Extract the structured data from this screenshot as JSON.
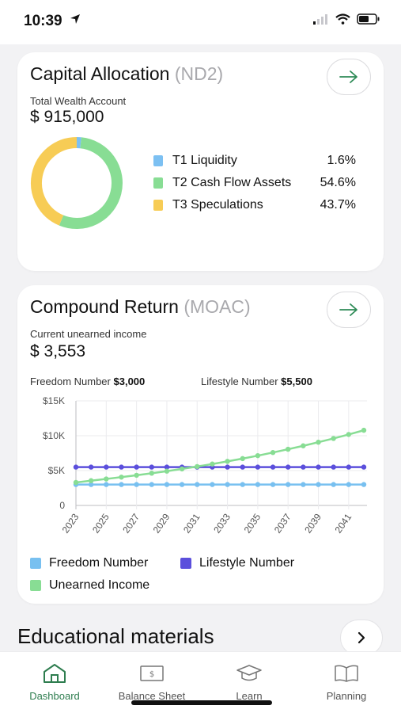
{
  "status": {
    "time": "10:39"
  },
  "capital": {
    "title": "Capital Allocation",
    "title_suffix": "(ND2)",
    "subtitle": "Total Wealth Account",
    "value": "$ 915,000",
    "legend": [
      {
        "label": "T1 Liquidity",
        "pct": "1.6%",
        "color": "#7cc0f2"
      },
      {
        "label": "T2 Cash Flow Assets",
        "pct": "54.6%",
        "color": "#88dd94"
      },
      {
        "label": "T3 Speculations",
        "pct": "43.7%",
        "color": "#f7cc55"
      }
    ]
  },
  "compound": {
    "title": "Compound Return",
    "title_suffix": "(MOAC)",
    "subtitle": "Current unearned income",
    "value": "$ 3,553",
    "freedom_label": "Freedom Number",
    "freedom_value": "$3,000",
    "lifestyle_label": "Lifestyle Number",
    "lifestyle_value": "$5,500",
    "legend": [
      {
        "label": "Freedom Number",
        "color": "#78c0f0"
      },
      {
        "label": "Lifestyle Number",
        "color": "#5b4fdc"
      },
      {
        "label": "Unearned Income",
        "color": "#88dd94"
      }
    ]
  },
  "chart_data": [
    {
      "type": "pie",
      "categories": [
        "T1 Liquidity",
        "T2 Cash Flow Assets",
        "T3 Speculations"
      ],
      "values": [
        1.6,
        54.6,
        43.7
      ],
      "colors": [
        "#7cc0f2",
        "#88dd94",
        "#f7cc55"
      ]
    },
    {
      "type": "line",
      "x": [
        2023,
        2024,
        2025,
        2026,
        2027,
        2028,
        2029,
        2030,
        2031,
        2032,
        2033,
        2034,
        2035,
        2036,
        2037,
        2038,
        2039,
        2040,
        2041,
        2042
      ],
      "xticks": [
        "2023",
        "2025",
        "2027",
        "2029",
        "2031",
        "2033",
        "2035",
        "2037",
        "2039",
        "2041"
      ],
      "yticks": [
        "0",
        "$5K",
        "$10K",
        "$15K"
      ],
      "ylim": [
        0,
        15000
      ],
      "grid": true,
      "series": [
        {
          "name": "Freedom Number",
          "color": "#78c0f0",
          "values": [
            3000,
            3000,
            3000,
            3000,
            3000,
            3000,
            3000,
            3000,
            3000,
            3000,
            3000,
            3000,
            3000,
            3000,
            3000,
            3000,
            3000,
            3000,
            3000,
            3000
          ]
        },
        {
          "name": "Lifestyle Number",
          "color": "#5b4fdc",
          "values": [
            5500,
            5500,
            5500,
            5500,
            5500,
            5500,
            5500,
            5500,
            5500,
            5500,
            5500,
            5500,
            5500,
            5500,
            5500,
            5500,
            5500,
            5500,
            5500,
            5500
          ]
        },
        {
          "name": "Unearned Income",
          "color": "#88dd94",
          "values": [
            3300,
            3550,
            3800,
            4060,
            4330,
            4620,
            4920,
            5240,
            5580,
            5940,
            6320,
            6720,
            7140,
            7590,
            8060,
            8550,
            9070,
            9610,
            10180,
            10780
          ]
        }
      ]
    }
  ],
  "education": {
    "title": "Educational materials"
  },
  "tabs": [
    {
      "label": "Dashboard",
      "icon": "home-icon"
    },
    {
      "label": "Balance Sheet",
      "icon": "banknote-icon"
    },
    {
      "label": "Learn",
      "icon": "graduation-cap-icon"
    },
    {
      "label": "Planning",
      "icon": "book-icon"
    }
  ]
}
